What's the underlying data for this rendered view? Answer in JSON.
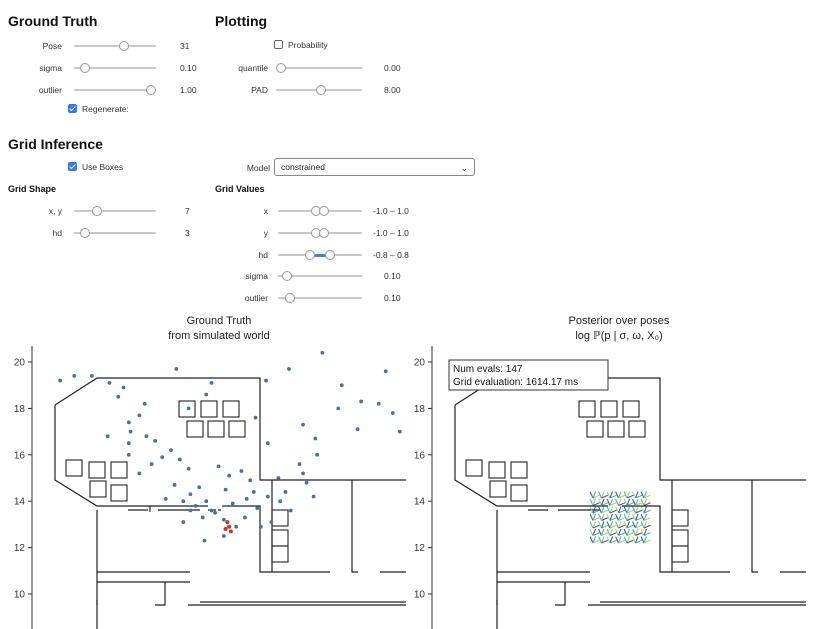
{
  "ground_truth": {
    "title": "Ground Truth",
    "sliders": [
      {
        "label": "Pose",
        "value": "31",
        "frac": 0.62
      },
      {
        "label": "sigma",
        "value": "0.10",
        "frac": 0.08
      },
      {
        "label": "outlier",
        "value": "1.00",
        "frac": 1.0
      }
    ],
    "regenerate": {
      "label": "Regenerate:",
      "checked": true
    }
  },
  "plotting": {
    "title": "Plotting",
    "probability": {
      "label": "Probability",
      "checked": false
    },
    "sliders": [
      {
        "label": "quantile",
        "value": "0.00",
        "frac": 0.0
      },
      {
        "label": "PAD",
        "value": "8.00",
        "frac": 0.52
      }
    ]
  },
  "grid_inference": {
    "title": "Grid Inference",
    "use_boxes": {
      "label": "Use Boxes",
      "checked": true
    },
    "model": {
      "label": "Model",
      "value": "constrained"
    },
    "grid_shape": {
      "title": "Grid Shape",
      "sliders": [
        {
          "label": "x, y",
          "value": "7",
          "frac": 0.25
        },
        {
          "label": "hd",
          "value": "3",
          "frac": 0.08
        }
      ]
    },
    "grid_values": {
      "title": "Grid Values",
      "ranges": [
        {
          "label": "x",
          "value": "-1.0 – 1.0",
          "lo": 0.45,
          "hi": 0.55
        },
        {
          "label": "y",
          "value": "-1.0 – 1.0",
          "lo": 0.45,
          "hi": 0.55
        },
        {
          "label": "hd",
          "value": "-0.8 – 0.8",
          "lo": 0.37,
          "hi": 0.63
        }
      ],
      "sliders": [
        {
          "label": "sigma",
          "value": "0.10",
          "frac": 0.05
        },
        {
          "label": "outlier",
          "value": "0.10",
          "frac": 0.1
        }
      ]
    }
  },
  "plots": {
    "left": {
      "title_line1": "Ground Truth",
      "title_line2": "from simulated world",
      "yticks": [
        "20",
        "18",
        "16",
        "14",
        "12",
        "10"
      ],
      "points": [
        [
          1.6,
          19.2
        ],
        [
          2.4,
          19.4
        ],
        [
          3.4,
          19.4
        ],
        [
          4.4,
          19.1
        ],
        [
          5.2,
          18.9
        ],
        [
          6.4,
          18.2
        ],
        [
          4.9,
          18.5
        ],
        [
          5.5,
          17.4
        ],
        [
          5.6,
          17.0
        ],
        [
          5.5,
          16.5
        ],
        [
          5.5,
          16.0
        ],
        [
          4.3,
          16.8
        ],
        [
          6.1,
          17.7
        ],
        [
          6.5,
          16.8
        ],
        [
          7.0,
          16.6
        ],
        [
          7.9,
          16.2
        ],
        [
          7.4,
          15.9
        ],
        [
          6.8,
          15.6
        ],
        [
          8.4,
          15.8
        ],
        [
          6.1,
          15.2
        ],
        [
          8.9,
          15.4
        ],
        [
          8.1,
          14.7
        ],
        [
          7.6,
          14.1
        ],
        [
          8.6,
          14.0
        ],
        [
          9.0,
          14.3
        ],
        [
          9.3,
          13.8
        ],
        [
          9.5,
          14.6
        ],
        [
          9.9,
          14.0
        ],
        [
          10.2,
          13.6
        ],
        [
          10.9,
          13.2
        ],
        [
          11.0,
          14.5
        ],
        [
          11.2,
          15.1
        ],
        [
          10.6,
          15.5
        ],
        [
          11.9,
          15.3
        ],
        [
          12.4,
          14.9
        ],
        [
          12.2,
          14.1
        ],
        [
          12.8,
          13.7
        ],
        [
          13.4,
          14.2
        ],
        [
          14.1,
          14.0
        ],
        [
          14.4,
          14.4
        ],
        [
          14.0,
          15.0
        ],
        [
          15.4,
          15.2
        ],
        [
          15.6,
          14.8
        ],
        [
          15.2,
          15.6
        ],
        [
          16.2,
          16.0
        ],
        [
          16.1,
          16.7
        ],
        [
          15.4,
          17.3
        ],
        [
          12.7,
          17.6
        ],
        [
          13.4,
          16.5
        ],
        [
          8.9,
          18.0
        ],
        [
          9.9,
          18.6
        ],
        [
          10.2,
          19.1
        ],
        [
          8.2,
          19.7
        ],
        [
          14.6,
          19.7
        ],
        [
          16.5,
          20.4
        ],
        [
          13.3,
          19.2
        ],
        [
          17.6,
          19.0
        ],
        [
          18.7,
          18.3
        ],
        [
          17.4,
          18.0
        ],
        [
          19.7,
          18.2
        ],
        [
          20.1,
          19.6
        ],
        [
          18.5,
          17.1
        ],
        [
          20.5,
          17.8
        ],
        [
          20.9,
          17.0
        ],
        [
          9.7,
          13.3
        ],
        [
          10.4,
          13.5
        ],
        [
          11.4,
          13.9
        ],
        [
          12.6,
          14.4
        ],
        [
          13.0,
          12.9
        ],
        [
          13.6,
          13.1
        ],
        [
          12.1,
          13.3
        ],
        [
          11.6,
          12.9
        ],
        [
          10.9,
          12.5
        ],
        [
          9.8,
          12.3
        ],
        [
          8.6,
          13.1
        ],
        [
          14.7,
          13.6
        ],
        [
          16.0,
          14.2
        ],
        [
          9.0,
          13.6
        ]
      ],
      "red_points": [
        [
          11.1,
          13.1
        ],
        [
          11.2,
          12.9
        ],
        [
          11.0,
          12.8
        ],
        [
          11.3,
          12.7
        ]
      ]
    },
    "right": {
      "title_line1": "Posterior over poses",
      "title_line2": "log ℙ(p | σ, ω, X₀)",
      "yticks": [
        "20",
        "18",
        "16",
        "14",
        "12",
        "10"
      ],
      "annotation_line1": "Num evals: 147",
      "annotation_line2": "Grid evaluation: 1614.17 ms"
    }
  },
  "colors": {
    "accent": "#3b78e7",
    "point": "#4a6fa5",
    "point_red": "#c0392b",
    "posterior_teal": "#3aa893",
    "posterior_navy": "#2b3a8a",
    "posterior_green": "#8ccf5a"
  }
}
